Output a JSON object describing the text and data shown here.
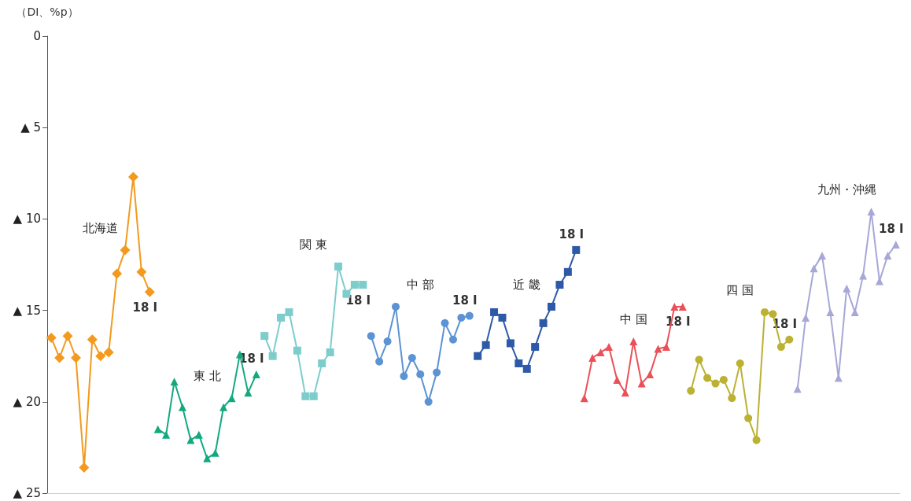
{
  "chart_data": {
    "type": "line",
    "ylabel": "（DI、%p）",
    "tick_labels": "y",
    "grid": false,
    "legend": false,
    "ylim": [
      -25,
      0
    ],
    "yticks": [
      {
        "value": -25,
        "label": "▲ 25"
      },
      {
        "value": -20,
        "label": "▲ 20"
      },
      {
        "value": -15,
        "label": "▲ 15"
      },
      {
        "value": -10,
        "label": "▲ 10"
      },
      {
        "value": -5,
        "label": "▲ 5"
      },
      0
    ],
    "categories": [
      null,
      null,
      null,
      null,
      null,
      null,
      null,
      null,
      null,
      null,
      null,
      null,
      null,
      null,
      null,
      null,
      null,
      null,
      null,
      null,
      null,
      null,
      null,
      null,
      null,
      null,
      null,
      null,
      null,
      null,
      null,
      null,
      null,
      null,
      null,
      null,
      null,
      null,
      null,
      null,
      null,
      null,
      null,
      null,
      null,
      null,
      null,
      null,
      null,
      null,
      null,
      null,
      null,
      null,
      null,
      null,
      null,
      null,
      null,
      null,
      null,
      null,
      null,
      null,
      null,
      null,
      null,
      null,
      null,
      null,
      null,
      null,
      null,
      null,
      null,
      null,
      null,
      null,
      null,
      null,
      null,
      null,
      null,
      null,
      null,
      null,
      null,
      null,
      null,
      null,
      null,
      null,
      null,
      null,
      null,
      null,
      null,
      null,
      null,
      null,
      null,
      null,
      null,
      null
    ],
    "annotations": [
      "18 Ⅰ",
      "18 Ⅰ",
      "18 Ⅰ",
      "18 Ⅰ",
      "18 Ⅰ",
      "18 Ⅰ",
      "18 Ⅰ",
      "18 Ⅰ"
    ],
    "series": [
      {
        "name": "北海道",
        "color": "#f39a1e",
        "marker": "diamond",
        "values": [
          -16.5,
          -17.6,
          -16.4,
          -17.6,
          -23.6,
          -16.6,
          -17.5,
          -17.3,
          -13.0,
          -11.7,
          -7.7,
          -12.9,
          -14.0,
          null,
          null,
          null,
          null,
          null,
          null,
          null,
          null,
          null,
          null,
          null,
          null,
          null,
          null,
          null,
          null,
          null,
          null,
          null,
          null,
          null,
          null,
          null,
          null,
          null,
          null,
          null,
          null,
          null,
          null,
          null,
          null,
          null,
          null,
          null,
          null,
          null,
          null,
          null,
          null,
          null,
          null,
          null,
          null,
          null,
          null,
          null,
          null,
          null,
          null,
          null,
          null,
          null,
          null,
          null,
          null,
          null,
          null,
          null,
          null,
          null,
          null,
          null,
          null,
          null,
          null,
          null,
          null,
          null,
          null,
          null,
          null,
          null,
          null,
          null,
          null,
          null,
          null,
          null,
          null,
          null,
          null,
          null,
          null,
          null,
          null,
          null,
          null,
          null,
          null,
          null
        ]
      },
      {
        "name": "東 北",
        "color": "#12a97f",
        "marker": "triangle",
        "values": [
          null,
          null,
          null,
          null,
          null,
          null,
          null,
          null,
          null,
          null,
          null,
          null,
          null,
          -21.5,
          -21.8,
          -18.9,
          -20.3,
          -22.1,
          -21.8,
          -23.1,
          -22.8,
          -20.3,
          -19.8,
          -17.4,
          -19.5,
          -18.5,
          null,
          null,
          null,
          null,
          null,
          null,
          null,
          null,
          null,
          null,
          null,
          null,
          null,
          null,
          null,
          null,
          null,
          null,
          null,
          null,
          null,
          null,
          null,
          null,
          null,
          null,
          null,
          null,
          null,
          null,
          null,
          null,
          null,
          null,
          null,
          null,
          null,
          null,
          null,
          null,
          null,
          null,
          null,
          null,
          null,
          null,
          null,
          null,
          null,
          null,
          null,
          null,
          null,
          null,
          null,
          null,
          null,
          null,
          null,
          null,
          null,
          null,
          null,
          null,
          null,
          null,
          null,
          null,
          null,
          null,
          null,
          null,
          null,
          null,
          null,
          null,
          null,
          null
        ]
      },
      {
        "name": "関 東",
        "color": "#7dcdcc",
        "marker": "square",
        "values": [
          null,
          null,
          null,
          null,
          null,
          null,
          null,
          null,
          null,
          null,
          null,
          null,
          null,
          null,
          null,
          null,
          null,
          null,
          null,
          null,
          null,
          null,
          null,
          null,
          null,
          null,
          -16.4,
          -17.5,
          -15.4,
          -15.1,
          -17.2,
          -19.7,
          -19.7,
          -17.9,
          -17.3,
          -12.6,
          -14.1,
          -13.6,
          -13.6,
          null,
          null,
          null,
          null,
          null,
          null,
          null,
          null,
          null,
          null,
          null,
          null,
          null,
          null,
          null,
          null,
          null,
          null,
          null,
          null,
          null,
          null,
          null,
          null,
          null,
          null,
          null,
          null,
          null,
          null,
          null,
          null,
          null,
          null,
          null,
          null,
          null,
          null,
          null,
          null,
          null,
          null,
          null,
          null,
          null,
          null,
          null,
          null,
          null,
          null,
          null,
          null,
          null,
          null,
          null,
          null,
          null,
          null,
          null,
          null,
          null,
          null,
          null,
          null,
          null
        ]
      },
      {
        "name": "中 部",
        "color": "#5b93d3",
        "marker": "circle",
        "values": [
          null,
          null,
          null,
          null,
          null,
          null,
          null,
          null,
          null,
          null,
          null,
          null,
          null,
          null,
          null,
          null,
          null,
          null,
          null,
          null,
          null,
          null,
          null,
          null,
          null,
          null,
          null,
          null,
          null,
          null,
          null,
          null,
          null,
          null,
          null,
          null,
          null,
          null,
          null,
          -16.4,
          -17.8,
          -16.7,
          -14.8,
          -18.6,
          -17.6,
          -18.5,
          -20.0,
          -18.4,
          -15.7,
          -16.6,
          -15.4,
          -15.3,
          null,
          null,
          null,
          null,
          null,
          null,
          null,
          null,
          null,
          null,
          null,
          null,
          null,
          null,
          null,
          null,
          null,
          null,
          null,
          null,
          null,
          null,
          null,
          null,
          null,
          null,
          null,
          null,
          null,
          null,
          null,
          null,
          null,
          null,
          null,
          null,
          null,
          null,
          null,
          null,
          null,
          null,
          null,
          null,
          null,
          null,
          null,
          null,
          null,
          null,
          null,
          null
        ]
      },
      {
        "name": "近 畿",
        "color": "#2e59a8",
        "marker": "square",
        "values": [
          null,
          null,
          null,
          null,
          null,
          null,
          null,
          null,
          null,
          null,
          null,
          null,
          null,
          null,
          null,
          null,
          null,
          null,
          null,
          null,
          null,
          null,
          null,
          null,
          null,
          null,
          null,
          null,
          null,
          null,
          null,
          null,
          null,
          null,
          null,
          null,
          null,
          null,
          null,
          null,
          null,
          null,
          null,
          null,
          null,
          null,
          null,
          null,
          null,
          null,
          null,
          null,
          -17.5,
          -16.9,
          -15.1,
          -15.4,
          -16.8,
          -17.9,
          -18.2,
          -17.0,
          -15.7,
          -14.8,
          -13.6,
          -12.9,
          -11.7,
          null,
          null,
          null,
          null,
          null,
          null,
          null,
          null,
          null,
          null,
          null,
          null,
          null,
          null,
          null,
          null,
          null,
          null,
          null,
          null,
          null,
          null,
          null,
          null,
          null,
          null,
          null,
          null,
          null,
          null,
          null,
          null,
          null,
          null,
          null,
          null,
          null,
          null,
          null
        ]
      },
      {
        "name": "中 国",
        "color": "#eb5058",
        "marker": "triangle",
        "values": [
          null,
          null,
          null,
          null,
          null,
          null,
          null,
          null,
          null,
          null,
          null,
          null,
          null,
          null,
          null,
          null,
          null,
          null,
          null,
          null,
          null,
          null,
          null,
          null,
          null,
          null,
          null,
          null,
          null,
          null,
          null,
          null,
          null,
          null,
          null,
          null,
          null,
          null,
          null,
          null,
          null,
          null,
          null,
          null,
          null,
          null,
          null,
          null,
          null,
          null,
          null,
          null,
          null,
          null,
          null,
          null,
          null,
          null,
          null,
          null,
          null,
          null,
          null,
          null,
          null,
          -19.8,
          -17.6,
          -17.3,
          -17.0,
          -18.8,
          -19.5,
          -16.7,
          -19.0,
          -18.5,
          -17.1,
          -17.0,
          -14.8,
          -14.8,
          null,
          null,
          null,
          null,
          null,
          null,
          null,
          null,
          null,
          null,
          null,
          null,
          null,
          null,
          null,
          null,
          null,
          null,
          null,
          null,
          null,
          null,
          null,
          null,
          null,
          null
        ]
      },
      {
        "name": "四 国",
        "color": "#bcb132",
        "marker": "circle",
        "values": [
          null,
          null,
          null,
          null,
          null,
          null,
          null,
          null,
          null,
          null,
          null,
          null,
          null,
          null,
          null,
          null,
          null,
          null,
          null,
          null,
          null,
          null,
          null,
          null,
          null,
          null,
          null,
          null,
          null,
          null,
          null,
          null,
          null,
          null,
          null,
          null,
          null,
          null,
          null,
          null,
          null,
          null,
          null,
          null,
          null,
          null,
          null,
          null,
          null,
          null,
          null,
          null,
          null,
          null,
          null,
          null,
          null,
          null,
          null,
          null,
          null,
          null,
          null,
          null,
          null,
          null,
          null,
          null,
          null,
          null,
          null,
          null,
          null,
          null,
          null,
          null,
          null,
          null,
          -19.4,
          -17.7,
          -18.7,
          -19.0,
          -18.8,
          -19.8,
          -17.9,
          -20.9,
          -22.1,
          -15.1,
          -15.2,
          -17.0,
          -16.6,
          null,
          null,
          null,
          null,
          null,
          null,
          null,
          null,
          null,
          null,
          null,
          null,
          null
        ]
      },
      {
        "name": "九州・沖縄",
        "color": "#a7a7d8",
        "marker": "triangle",
        "values": [
          null,
          null,
          null,
          null,
          null,
          null,
          null,
          null,
          null,
          null,
          null,
          null,
          null,
          null,
          null,
          null,
          null,
          null,
          null,
          null,
          null,
          null,
          null,
          null,
          null,
          null,
          null,
          null,
          null,
          null,
          null,
          null,
          null,
          null,
          null,
          null,
          null,
          null,
          null,
          null,
          null,
          null,
          null,
          null,
          null,
          null,
          null,
          null,
          null,
          null,
          null,
          null,
          null,
          null,
          null,
          null,
          null,
          null,
          null,
          null,
          null,
          null,
          null,
          null,
          null,
          null,
          null,
          null,
          null,
          null,
          null,
          null,
          null,
          null,
          null,
          null,
          null,
          null,
          null,
          null,
          null,
          null,
          null,
          null,
          null,
          null,
          null,
          null,
          null,
          null,
          null,
          -19.3,
          -15.4,
          -12.7,
          -12.0,
          -15.1,
          -18.7,
          -13.8,
          -15.1,
          -13.1,
          -9.6,
          -13.4,
          -12.0,
          -11.4
        ]
      }
    ]
  }
}
